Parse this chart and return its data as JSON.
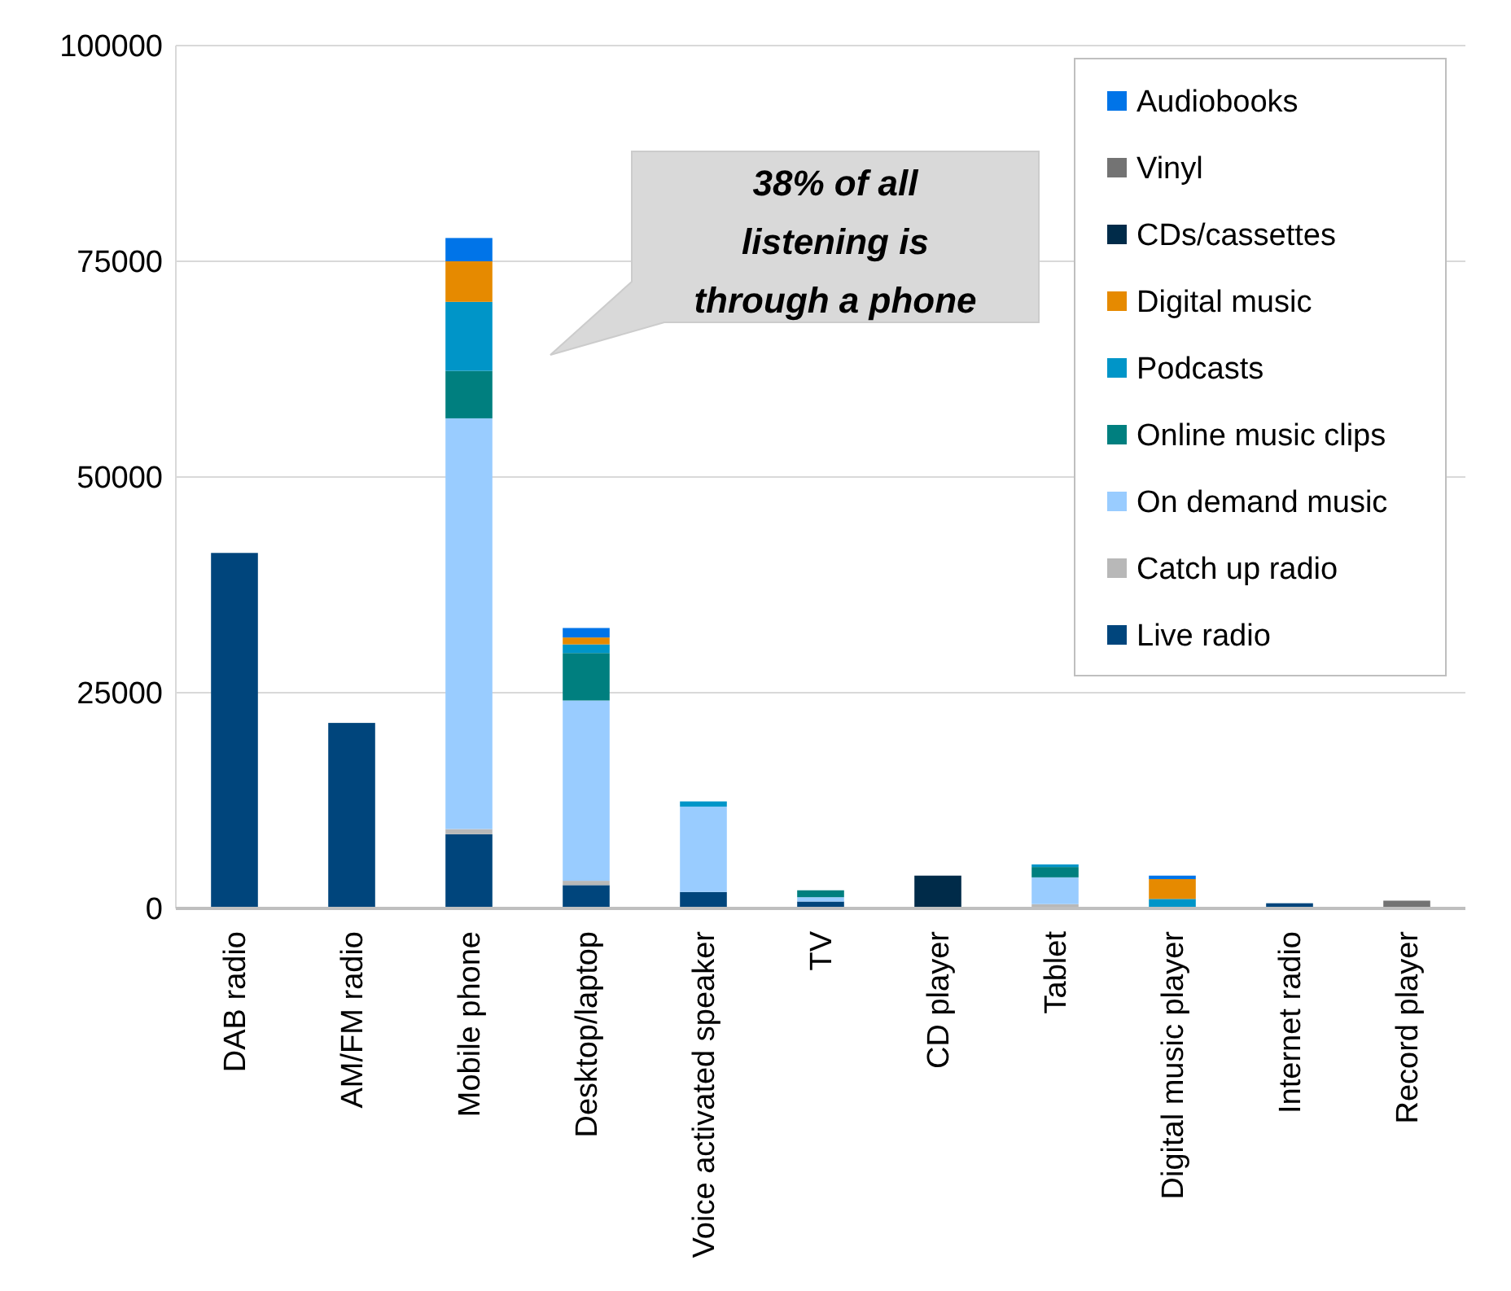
{
  "chart_data": {
    "type": "bar",
    "stacked": true,
    "categories": [
      "DAB radio",
      "AM/FM radio",
      "Mobile phone",
      "Desktop/laptop",
      "Voice activated speaker",
      "TV",
      "CD player",
      "Tablet",
      "Digital music player",
      "Internet radio",
      "Record player"
    ],
    "series": [
      {
        "name": "Live radio",
        "color": "#00457c",
        "values": [
          41200,
          21500,
          8600,
          2700,
          1900,
          800,
          null,
          null,
          null,
          600,
          null
        ]
      },
      {
        "name": "Catch up radio",
        "color": "#b8b8b8",
        "values": [
          null,
          null,
          600,
          500,
          null,
          null,
          null,
          500,
          null,
          null,
          null
        ]
      },
      {
        "name": "On demand music",
        "color": "#99ccff",
        "values": [
          null,
          null,
          47600,
          20900,
          9900,
          500,
          null,
          3100,
          null,
          null,
          null
        ]
      },
      {
        "name": "Online music clips",
        "color": "#007f7f",
        "values": [
          null,
          null,
          5500,
          5500,
          null,
          800,
          null,
          1200,
          null,
          null,
          null
        ]
      },
      {
        "name": "Podcasts",
        "color": "#0095c8",
        "values": [
          null,
          null,
          8000,
          1000,
          600,
          null,
          null,
          300,
          1100,
          null,
          null
        ]
      },
      {
        "name": "Digital music",
        "color": "#e68a00",
        "values": [
          null,
          null,
          4700,
          800,
          null,
          null,
          null,
          null,
          2300,
          null,
          null
        ]
      },
      {
        "name": "CDs/cassettes",
        "color": "#002b49",
        "values": [
          null,
          null,
          null,
          null,
          null,
          null,
          3800,
          null,
          null,
          null,
          null
        ]
      },
      {
        "name": "Vinyl",
        "color": "#737373",
        "values": [
          null,
          null,
          null,
          null,
          null,
          null,
          null,
          null,
          null,
          null,
          900
        ]
      },
      {
        "name": "Audiobooks",
        "color": "#0074e8",
        "values": [
          null,
          null,
          2700,
          1100,
          null,
          null,
          null,
          null,
          400,
          null,
          null
        ]
      }
    ],
    "ylim": [
      0,
      100000
    ],
    "yticks": [
      0,
      25000,
      50000,
      75000,
      100000
    ],
    "grid": "y",
    "legend": "top right",
    "annotations": [
      "38% of all listening is through a phone"
    ]
  }
}
